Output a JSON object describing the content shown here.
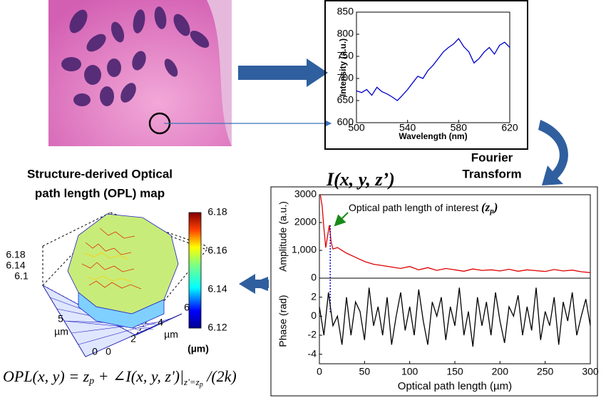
{
  "figure": {
    "ft_line1": "Fourier",
    "ft_line2": "Transform",
    "opl_title_line1": "Structure-derived Optical",
    "opl_title_line2": "path length (OPL) map",
    "intensity_symbol": "I(x, y, z’)",
    "annotation": "Optical path length of interest ",
    "annotation_symbol": "(z",
    "annotation_sub": "p",
    "annotation_close": ")",
    "equation": [
      "OPL(x, y) = z",
      "p",
      " + ∠I(x, y, z')|",
      "z'=z",
      "p",
      " /(2k)"
    ]
  },
  "opl_map": {
    "z_tick_labels": [
      "6.18",
      "6.14",
      "6.1"
    ],
    "y_tick_labels": [
      "5",
      "0"
    ],
    "y_unit": "µm",
    "x_tick_labels": [
      "0",
      "2",
      "4",
      "6"
    ],
    "x_unit": "µm",
    "colorbar": {
      "ticks": [
        "6.18",
        "6.16",
        "6.14",
        "6.12"
      ],
      "unit": "(µm)"
    }
  },
  "chart_data": [
    {
      "type": "line",
      "xlabel": "Wavelength (nm)",
      "ylabel": "Intensity (a.u.)",
      "color": "#0000cc",
      "x": [
        500,
        504,
        508,
        512,
        516,
        520,
        524,
        528,
        532,
        536,
        540,
        544,
        548,
        552,
        556,
        560,
        564,
        568,
        572,
        576,
        580,
        584,
        588,
        592,
        596,
        600,
        604,
        608,
        612,
        616,
        620
      ],
      "values": [
        672,
        668,
        675,
        662,
        680,
        670,
        665,
        658,
        650,
        662,
        675,
        690,
        705,
        700,
        718,
        730,
        745,
        760,
        770,
        778,
        790,
        772,
        760,
        735,
        745,
        760,
        770,
        755,
        775,
        782,
        770
      ],
      "xlim": [
        500,
        620
      ],
      "ylim": [
        600,
        850
      ],
      "xticks": [
        500,
        540,
        580,
        620
      ],
      "yticks": [
        600,
        650,
        700,
        750,
        800,
        850
      ]
    },
    {
      "type": "line",
      "ylabel": "Amplitude (a.u.)",
      "color": "#e00000",
      "x": [
        1,
        3,
        5,
        7,
        9,
        11,
        13,
        15,
        20,
        30,
        40,
        50,
        60,
        70,
        80,
        90,
        100,
        110,
        120,
        130,
        140,
        150,
        160,
        170,
        180,
        190,
        200,
        210,
        220,
        230,
        240,
        250,
        260,
        270,
        280,
        290,
        300
      ],
      "values": [
        3000,
        2600,
        1800,
        1100,
        1500,
        1900,
        1300,
        1050,
        1100,
        900,
        750,
        600,
        500,
        450,
        400,
        350,
        420,
        300,
        380,
        280,
        350,
        300,
        250,
        330,
        280,
        300,
        260,
        320,
        250,
        300,
        270,
        240,
        310,
        260,
        290,
        230,
        200
      ],
      "marker_x": 12,
      "xlim": [
        0,
        300
      ],
      "ylim": [
        0,
        3000
      ],
      "yticks": [
        0,
        {
          "value": 1000,
          "label": "1,000"
        },
        2000,
        3000
      ]
    },
    {
      "type": "line",
      "xlabel": "Optical path length (µm)",
      "ylabel": "Phase (rad)",
      "color": "#000000",
      "x": [
        0,
        5,
        10,
        15,
        20,
        25,
        30,
        35,
        40,
        45,
        50,
        55,
        60,
        65,
        70,
        75,
        80,
        85,
        90,
        95,
        100,
        105,
        110,
        115,
        120,
        125,
        130,
        135,
        140,
        145,
        150,
        155,
        160,
        165,
        170,
        175,
        180,
        185,
        190,
        195,
        200,
        205,
        210,
        215,
        220,
        225,
        230,
        235,
        240,
        245,
        250,
        255,
        260,
        265,
        270,
        275,
        280,
        285,
        290,
        295,
        300
      ],
      "values": [
        1,
        -2,
        2.5,
        -1,
        0,
        -3,
        2,
        -2,
        1.5,
        0.5,
        -2.5,
        3,
        -1,
        1,
        -2,
        2,
        -3,
        0,
        2.5,
        -1.5,
        1,
        -2,
        2.8,
        -0.5,
        -3,
        1.5,
        0,
        2,
        -2.5,
        1,
        -1,
        3,
        -2,
        0.5,
        -3.2,
        2,
        -1,
        1.5,
        -2,
        2.5,
        -0.5,
        -2.8,
        1,
        0,
        2.2,
        -2,
        1,
        -1.5,
        3,
        -2.5,
        0.5,
        -1,
        2,
        -3,
        1.5,
        -0.5,
        2.5,
        -2,
        0,
        1.8,
        -1
      ],
      "xlim": [
        0,
        300
      ],
      "ylim": [
        -5,
        4
      ],
      "xticks": [
        0,
        50,
        100,
        150,
        200,
        250,
        300
      ],
      "yticks": [
        -4,
        -2,
        0,
        2
      ]
    }
  ]
}
